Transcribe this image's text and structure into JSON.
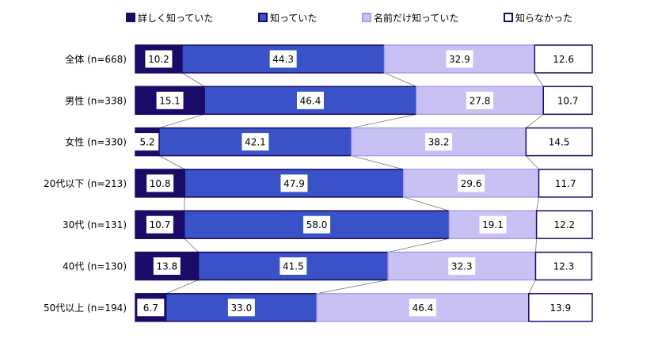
{
  "chart_data": {
    "type": "bar",
    "orientation": "horizontal",
    "stacked": "100%",
    "title": "",
    "xlabel": "",
    "ylabel": "",
    "xlim": [
      0,
      100
    ],
    "legend_position": "top",
    "grid": false,
    "categories": [
      "全体 (n=668)",
      "男性 (n=338)",
      "女性 (n=330)",
      "20代以下 (n=213)",
      "30代 (n=131)",
      "40代 (n=130)",
      "50代以上 (n=194)"
    ],
    "series": [
      {
        "name": "詳しく知っていた",
        "color": "#1b0a66",
        "values": [
          10.2,
          15.1,
          5.2,
          10.8,
          10.7,
          13.8,
          6.7
        ]
      },
      {
        "name": "知っていた",
        "color": "#3a52c8",
        "values": [
          44.3,
          46.4,
          42.1,
          47.9,
          58.0,
          41.5,
          33.0
        ]
      },
      {
        "name": "名前だけ知っていた",
        "color": "#c8c2f4",
        "values": [
          32.9,
          27.8,
          38.2,
          29.6,
          19.1,
          32.3,
          46.4
        ]
      },
      {
        "name": "知らなかった",
        "color": "#ffffff",
        "values": [
          12.6,
          10.7,
          14.5,
          11.7,
          12.2,
          12.3,
          13.9
        ]
      }
    ],
    "data_labels": [
      [
        "10.2",
        "44.3",
        "32.9",
        "12.6"
      ],
      [
        "15.1",
        "46.4",
        "27.8",
        "10.7"
      ],
      [
        "5.2",
        "42.1",
        "38.2",
        "14.5"
      ],
      [
        "10.8",
        "47.9",
        "29.6",
        "11.7"
      ],
      [
        "10.7",
        "58.0",
        "19.1",
        "12.2"
      ],
      [
        "13.8",
        "41.5",
        "32.3",
        "12.3"
      ],
      [
        "6.7",
        "33.0",
        "46.4",
        "13.9"
      ]
    ],
    "series_borders": [
      "#1b0a66",
      "#1b0a66",
      "#a79ee8",
      "#1b0a66"
    ],
    "connector_color": "#777777"
  }
}
